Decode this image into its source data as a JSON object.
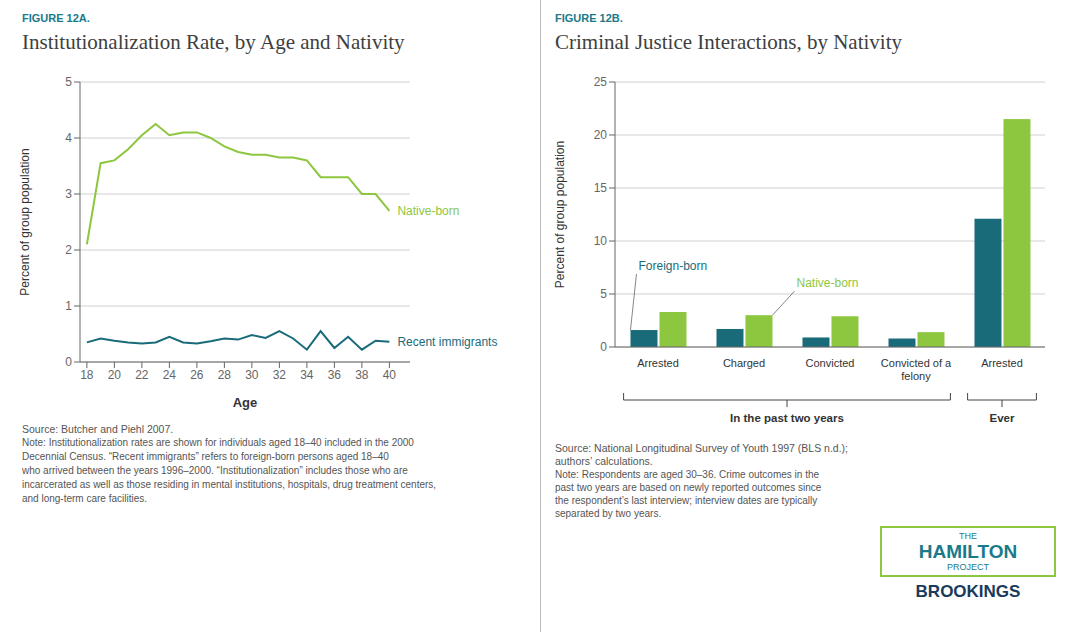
{
  "chart_data": [
    {
      "type": "line",
      "subtitle": "FIGURE 12A.",
      "title": "Institutionalization Rate, by Age and Nativity",
      "x_label": "Age",
      "y_label": "Percent of group population",
      "x": [
        18,
        19,
        20,
        21,
        22,
        23,
        24,
        25,
        26,
        27,
        28,
        29,
        30,
        31,
        32,
        33,
        34,
        35,
        36,
        37,
        38,
        39,
        40
      ],
      "xlim": [
        17.5,
        41.5
      ],
      "xticks": [
        18,
        20,
        22,
        24,
        26,
        28,
        30,
        32,
        34,
        36,
        38,
        40
      ],
      "ylim": [
        0,
        5
      ],
      "yticks": [
        0,
        1,
        2,
        3,
        4,
        5
      ],
      "grid": true,
      "series": [
        {
          "name": "Native-born",
          "color": "#8dc63f",
          "values": [
            2.1,
            3.55,
            3.6,
            3.8,
            4.05,
            4.25,
            4.05,
            4.1,
            4.1,
            4.0,
            3.85,
            3.75,
            3.7,
            3.7,
            3.65,
            3.65,
            3.6,
            3.3,
            3.3,
            3.3,
            3.0,
            3.0,
            2.7
          ]
        },
        {
          "name": "Recent immigrants",
          "color": "#1a6b7a",
          "values": [
            0.35,
            0.42,
            0.38,
            0.35,
            0.33,
            0.35,
            0.45,
            0.35,
            0.33,
            0.37,
            0.42,
            0.4,
            0.48,
            0.43,
            0.55,
            0.42,
            0.22,
            0.55,
            0.25,
            0.45,
            0.22,
            0.38,
            0.36
          ]
        }
      ],
      "annotations": [
        "Source: Butcher and Piehl 2007.",
        "Note: Institutionalization rates are shown for individuals aged 18–40 included in the 2000",
        "Decennial Census. “Recent immigrants” refers to foreign-born persons aged 18–40",
        "who arrived between the years 1996–2000. “Institutionalization” includes those who are",
        "incarcerated as well as those residing in mental institutions, hospitals, drug treatment centers,",
        "and long-term care facilities."
      ]
    },
    {
      "type": "bar",
      "subtitle": "FIGURE 12B.",
      "title": "Criminal Justice Interactions, by Nativity",
      "y_label": "Percent of group population",
      "categories": [
        "Arrested",
        "Charged",
        "Convicted",
        "Convicted of a\nfelony",
        "Arrested"
      ],
      "series": [
        {
          "name": "Foreign-born",
          "color": "#1a6b7a",
          "values": [
            1.6,
            1.7,
            0.9,
            0.8,
            12.1
          ]
        },
        {
          "name": "Native-born",
          "color": "#8dc63f",
          "values": [
            3.3,
            3.0,
            2.9,
            1.4,
            21.5
          ]
        }
      ],
      "ylim": [
        0,
        25
      ],
      "yticks": [
        0,
        5,
        10,
        15,
        20,
        25
      ],
      "grid": true,
      "annotations": [
        "In the past two years",
        "Ever",
        "Source: National Longitudinal Survey of Youth 1997 (BLS n.d.);",
        "authors’ calculations.",
        "Note: Respondents are aged 30–36. Crime outcomes in the",
        "past two years are based on newly reported outcomes since",
        "the respondent’s last interview; interview dates are typically",
        "separated by two years.",
        "THE",
        "HAMILTON",
        "PROJECT",
        "BROOKINGS"
      ]
    }
  ]
}
